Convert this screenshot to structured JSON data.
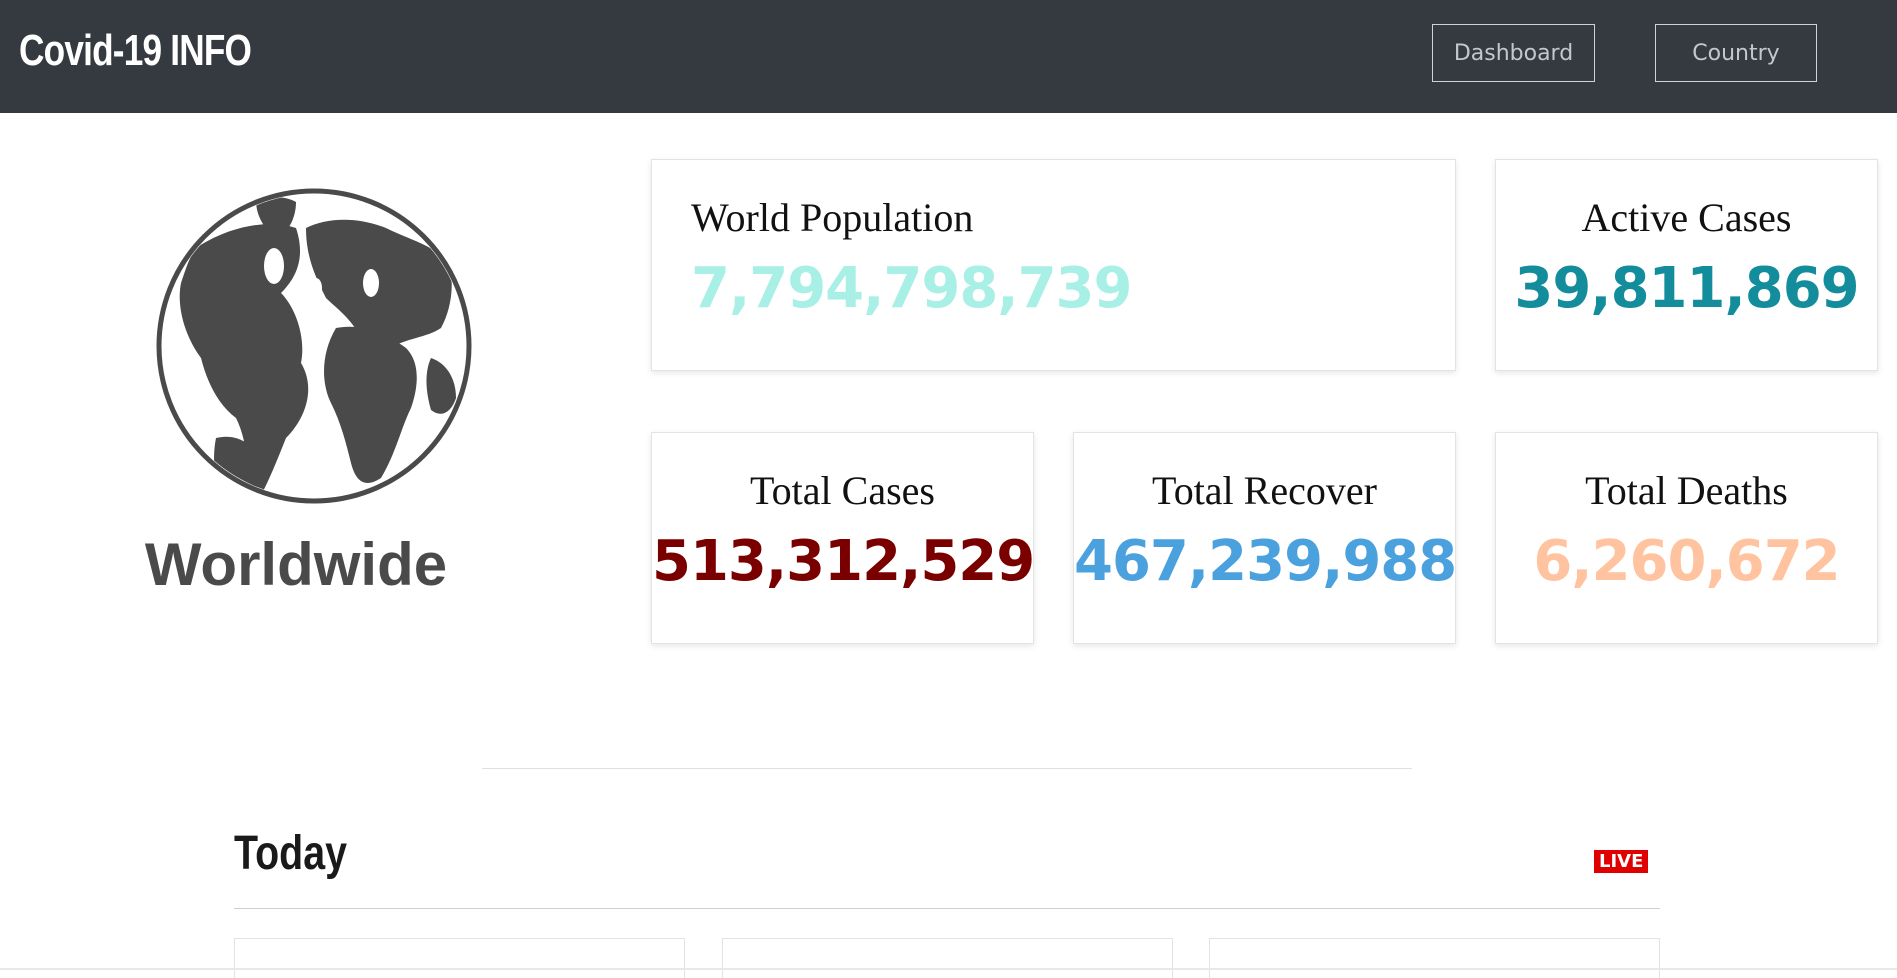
{
  "navbar": {
    "brand": "Covid-19 INFO",
    "links": [
      {
        "label": "Dashboard"
      },
      {
        "label": "Country"
      }
    ]
  },
  "hero": {
    "icon": "globe-icon",
    "label": "Worldwide"
  },
  "stats": {
    "world_population": {
      "title": "World Population",
      "value": "7,794,798,739",
      "color": "#a8efe6"
    },
    "active_cases": {
      "title": "Active Cases",
      "value": "39,811,869",
      "color": "#138c9c"
    },
    "total_cases": {
      "title": "Total Cases",
      "value": "513,312,529",
      "color": "#7a0000"
    },
    "total_recover": {
      "title": "Total Recover",
      "value": "467,239,988",
      "color": "#4ba1dd"
    },
    "total_deaths": {
      "title": "Total Deaths",
      "value": "6,260,672",
      "color": "#ffc3a0"
    }
  },
  "today": {
    "title": "Today",
    "badge": "LIVE"
  }
}
